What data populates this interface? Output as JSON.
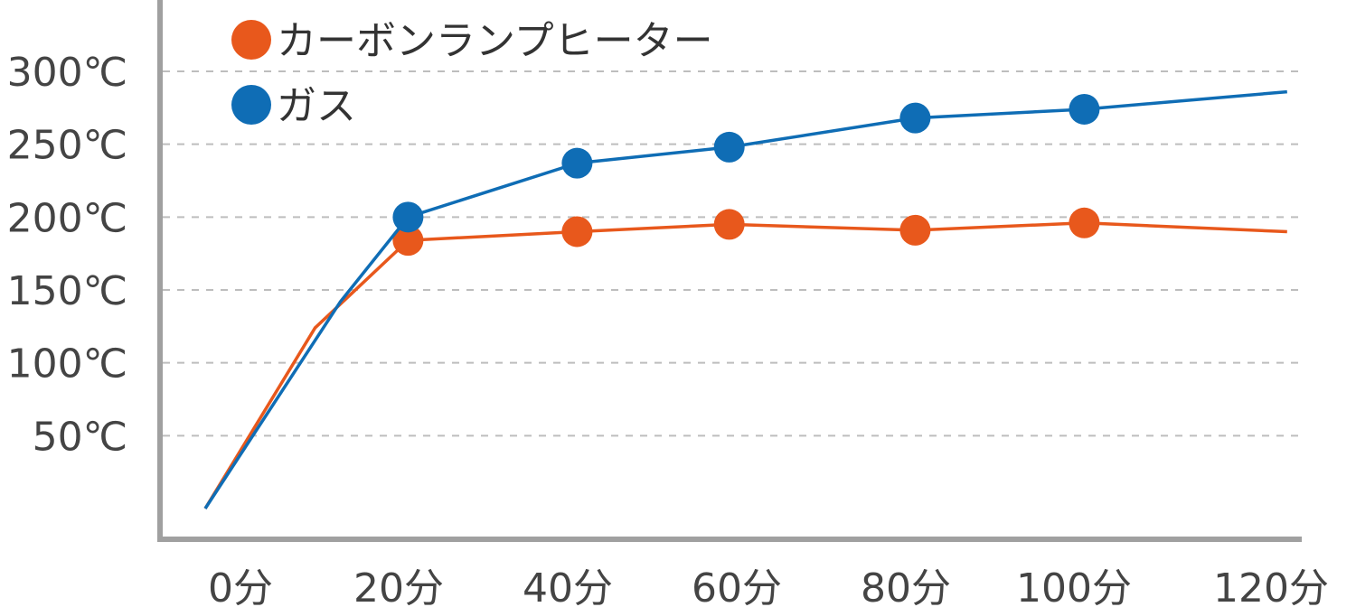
{
  "chart_data": {
    "type": "line",
    "x": [
      0,
      20,
      40,
      60,
      80,
      100,
      120
    ],
    "x_tick_labels": [
      "0分",
      "20分",
      "40分",
      "60分",
      "80分",
      "100分",
      "120分"
    ],
    "y_tick_values": [
      50,
      100,
      150,
      200,
      250,
      300
    ],
    "y_tick_labels": [
      "50℃",
      "100℃",
      "150℃",
      "200℃",
      "250℃",
      "300℃"
    ],
    "ylim": [
      0,
      300
    ],
    "grid": true,
    "legend_position": "top-left",
    "series": [
      {
        "name": "カーボンランプヒーター",
        "color": "#e8581c",
        "line_x": [
          0,
          13,
          24,
          44,
          62,
          84,
          104,
          128
        ],
        "line_y": [
          0,
          124,
          184,
          190,
          195,
          191,
          196,
          190
        ],
        "marker_x": [
          24,
          44,
          62,
          84,
          104
        ],
        "marker_y": [
          184,
          190,
          195,
          191,
          196
        ]
      },
      {
        "name": "ガス",
        "color": "#0f6db5",
        "line_x": [
          0,
          16,
          24,
          44,
          62,
          84,
          104,
          128
        ],
        "line_y": [
          0,
          142,
          200,
          237,
          248,
          268,
          274,
          286
        ],
        "marker_x": [
          24,
          44,
          62,
          84,
          104
        ],
        "marker_y": [
          200,
          237,
          248,
          268,
          274
        ]
      }
    ]
  }
}
